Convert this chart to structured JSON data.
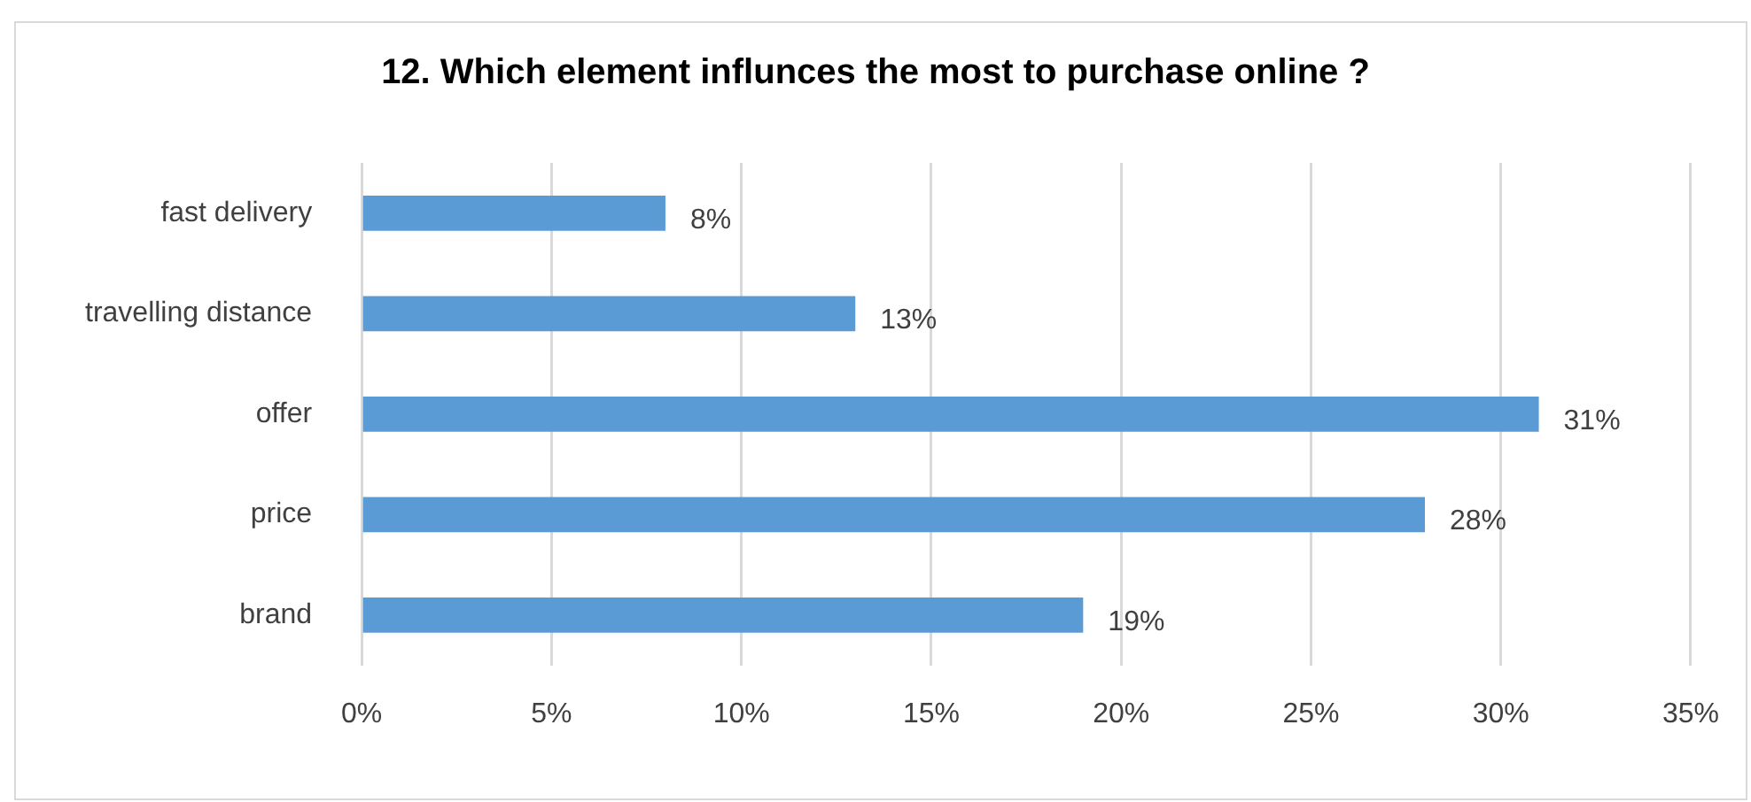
{
  "chart_data": {
    "type": "bar",
    "orientation": "horizontal",
    "title": "12. Which element influnces the most to purchase online ?",
    "categories": [
      "fast delivery",
      "travelling distance",
      "offer",
      "price",
      "brand"
    ],
    "values": [
      8,
      13,
      31,
      28,
      19
    ],
    "value_labels": [
      "8%",
      "13%",
      "31%",
      "28%",
      "19%"
    ],
    "color": "#5b9bd5",
    "xlim": [
      0,
      35
    ],
    "xticks": [
      {
        "value": 0,
        "label": "0%"
      },
      {
        "value": 5,
        "label": "5%"
      },
      {
        "value": 10,
        "label": "10%"
      },
      {
        "value": 15,
        "label": "15%"
      },
      {
        "value": 20,
        "label": "20%"
      },
      {
        "value": 25,
        "label": "25%"
      },
      {
        "value": 30,
        "label": "30%"
      },
      {
        "value": 35,
        "label": "35%"
      }
    ],
    "grid": "x",
    "legend": false
  }
}
